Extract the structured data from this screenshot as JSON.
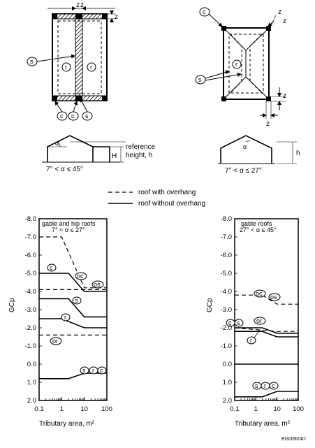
{
  "top_left": {
    "dim_labels": [
      "z",
      "z",
      "z"
    ],
    "zone_labels": [
      "s",
      "r",
      "r",
      "c",
      "c",
      "s"
    ],
    "angle_symbol": "α",
    "H_label": "H",
    "ref_height_line1": "reference",
    "ref_height_line2": "height, h",
    "range_label": "7° < α ≤ 45°"
  },
  "top_right": {
    "dim_labels": [
      "z",
      "z",
      "z",
      "z"
    ],
    "zone_labels": [
      "c",
      "r",
      "s"
    ],
    "angle_symbol": "α",
    "h_label": "h",
    "range_label": "7° < α ≤ 27°"
  },
  "legend": {
    "dashed_label": "roof with overhang",
    "solid_label": "roof without overhang"
  },
  "figure_code": "EG00924D",
  "chart_data": [
    {
      "type": "line",
      "title": "gable and hip roofs",
      "subtitle": "7° < α ≤ 27°",
      "xlabel": "Tributary area, m²",
      "ylabel": "GCp",
      "xscale": "log",
      "xlim": [
        0.1,
        100
      ],
      "ylim": [
        -8.0,
        2.0
      ],
      "y_inverted": true,
      "xticks": [
        "0.1",
        "1",
        "10",
        "100"
      ],
      "yticks": [
        "-8.0",
        "-7.0",
        "-6.0",
        "-5.0",
        "-4.0",
        "-3.0",
        "-2.0",
        "-1.0",
        "0.0",
        "1.0",
        "2.0"
      ],
      "annotations": [
        "c",
        "oc",
        "os",
        "s",
        "r",
        "or",
        "s",
        "r",
        "c"
      ],
      "series": [
        {
          "style": "dashed",
          "x": [
            0.1,
            1,
            10,
            100
          ],
          "y": [
            -7.0,
            -7.0,
            -4.2,
            -4.2
          ]
        },
        {
          "style": "dashed",
          "x": [
            0.1,
            100
          ],
          "y": [
            -4.1,
            -4.1
          ]
        },
        {
          "style": "dashed",
          "x": [
            0.1,
            100
          ],
          "y": [
            -1.6,
            -1.6
          ]
        },
        {
          "style": "solid",
          "x": [
            0.1,
            2,
            10,
            100
          ],
          "y": [
            -5.0,
            -5.0,
            -4.0,
            -4.0
          ]
        },
        {
          "style": "solid",
          "x": [
            0.1,
            2,
            10,
            100
          ],
          "y": [
            -3.6,
            -3.6,
            -2.6,
            -2.6
          ]
        },
        {
          "style": "solid",
          "x": [
            0.1,
            1,
            10,
            100
          ],
          "y": [
            -2.5,
            -2.5,
            -2.0,
            -2.0
          ]
        },
        {
          "style": "solid",
          "x": [
            0.1,
            2,
            10,
            100
          ],
          "y": [
            0.8,
            0.8,
            0.5,
            0.5
          ]
        }
      ]
    },
    {
      "type": "line",
      "title": "gable roofs",
      "subtitle": "27° < α ≤ 45°",
      "xlabel": "Tributary area, m²",
      "ylabel": "GCp",
      "xscale": "log",
      "xlim": [
        0.1,
        100
      ],
      "ylim": [
        -8.0,
        2.0
      ],
      "y_inverted": true,
      "xticks": [
        "0.1",
        "1",
        "10",
        "100"
      ],
      "yticks": [
        "-8.0",
        "-7.0",
        "-6.0",
        "-5.0",
        "-4.0",
        "-3.0",
        "-2.0",
        "-1.0",
        "0.0",
        "1.0",
        "2.0"
      ],
      "annotations": [
        "oc",
        "os",
        "c",
        "s",
        "or",
        "r",
        "s",
        "r",
        "c"
      ],
      "series": [
        {
          "style": "dashed",
          "x": [
            0.1,
            2,
            10,
            100
          ],
          "y": [
            -3.8,
            -3.8,
            -3.3,
            -3.3
          ]
        },
        {
          "style": "dashed",
          "x": [
            0.1,
            10,
            100
          ],
          "y": [
            -2.0,
            -1.8,
            -1.8
          ]
        },
        {
          "style": "solid",
          "x": [
            0.1,
            2,
            10,
            100
          ],
          "y": [
            -2.0,
            -2.0,
            -1.7,
            -1.7
          ]
        },
        {
          "style": "solid",
          "x": [
            0.1,
            2,
            10,
            100
          ],
          "y": [
            -1.8,
            -1.8,
            -1.5,
            -1.5
          ]
        },
        {
          "style": "solid",
          "x": [
            0.1,
            100
          ],
          "y": [
            0.0,
            0.0
          ]
        },
        {
          "style": "solid",
          "x": [
            0.1,
            2,
            10,
            100
          ],
          "y": [
            1.8,
            1.8,
            1.5,
            1.5
          ]
        }
      ]
    }
  ]
}
